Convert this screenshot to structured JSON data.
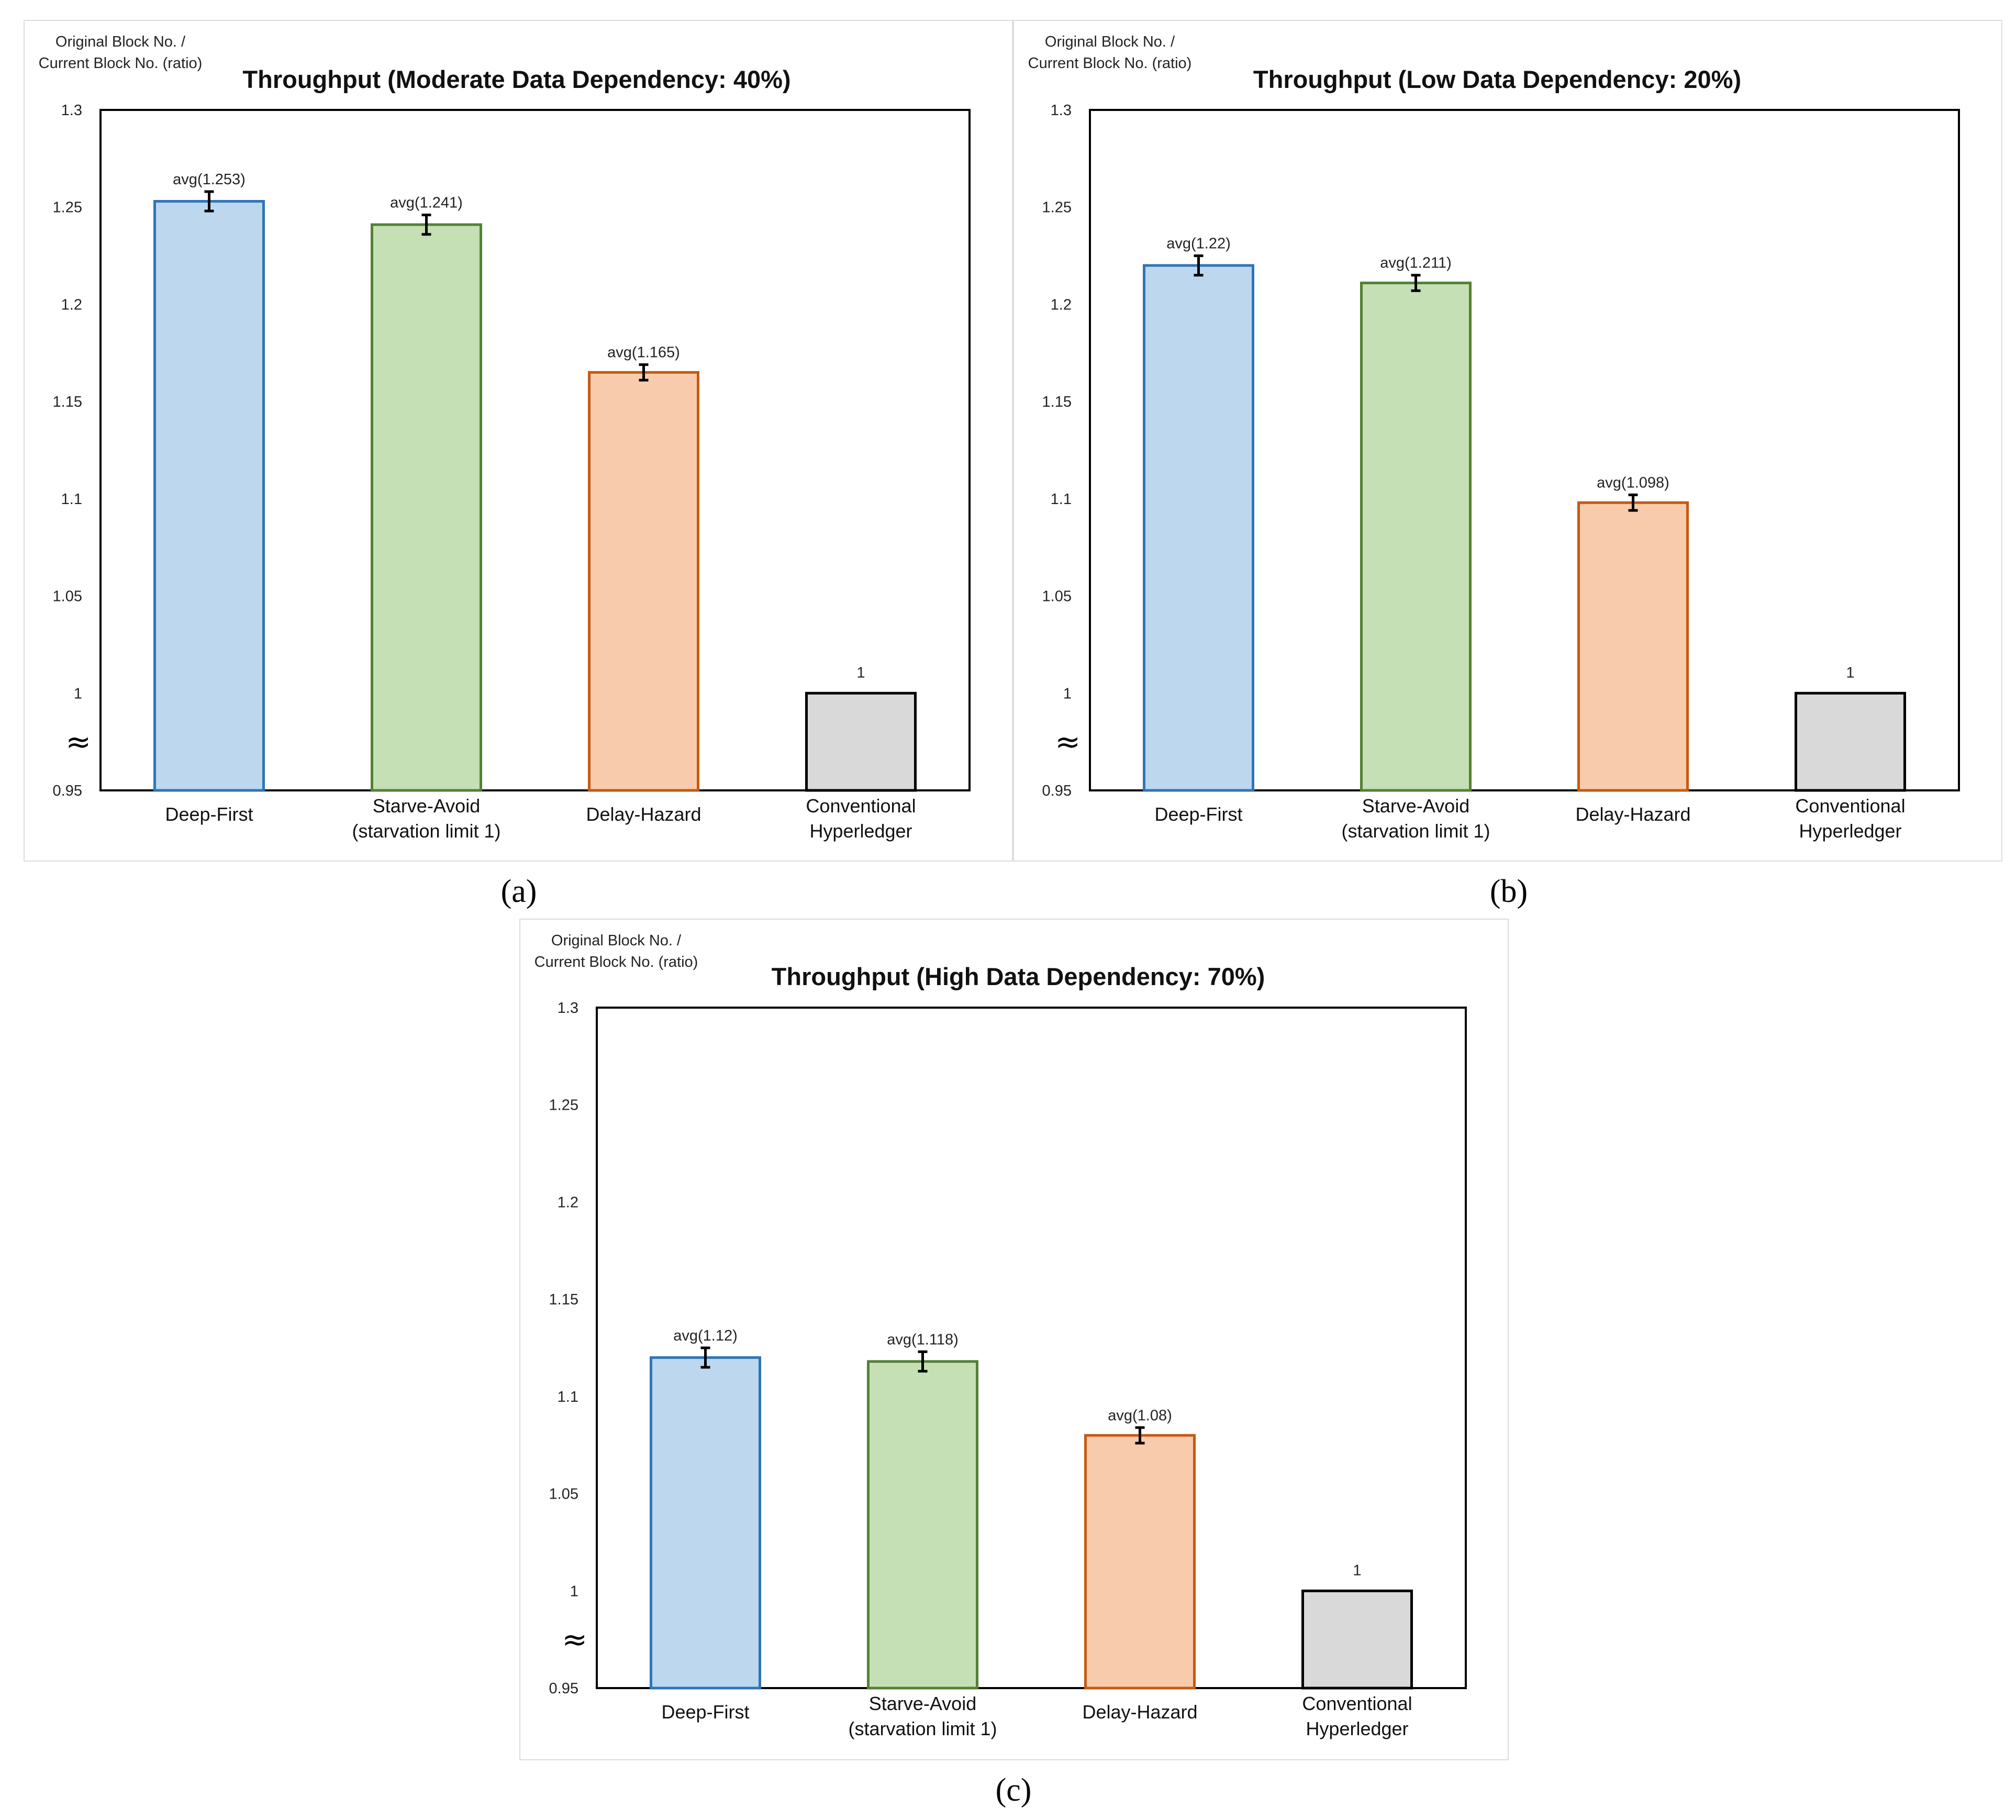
{
  "chart_data": [
    {
      "type": "bar",
      "panel_label": "(a)",
      "title": "Throughput (Moderate Data Dependency: 40%)",
      "ylabel": [
        "Original Block No. /",
        "Current Block No. (ratio)"
      ],
      "xlabel": "",
      "ylim": [
        0.95,
        1.3
      ],
      "yticks": [
        "1.3",
        "1.25",
        "1.2",
        "1.15",
        "1.1",
        "1.05",
        "1",
        "0.95"
      ],
      "ytick_values": [
        1.3,
        1.25,
        1.2,
        1.15,
        1.1,
        1.05,
        1.0,
        0.95
      ],
      "axis_break": "≈",
      "categories": [
        [
          "Deep-First"
        ],
        [
          "Starve-Avoid",
          "(starvation limit 1)"
        ],
        [
          "Delay-Hazard"
        ],
        [
          "Conventional",
          "Hyperledger"
        ]
      ],
      "values": [
        1.253,
        1.241,
        1.165,
        1.0
      ],
      "error": [
        0.005,
        0.005,
        0.004,
        0
      ],
      "data_labels": [
        "avg(1.253)",
        "avg(1.241)",
        "avg(1.165)",
        "1"
      ],
      "fill_colors": [
        "#bdd7ee",
        "#c5e0b4",
        "#f8cbad",
        "#d9d9d9"
      ],
      "edge_colors": [
        "#2e75b6",
        "#538135",
        "#c55a11",
        "#000000"
      ],
      "grid": false
    },
    {
      "type": "bar",
      "panel_label": "(b)",
      "title": "Throughput (Low Data Dependency: 20%)",
      "ylabel": [
        "Original Block No. /",
        "Current Block No. (ratio)"
      ],
      "xlabel": "",
      "ylim": [
        0.95,
        1.3
      ],
      "yticks": [
        "1.3",
        "1.25",
        "1.2",
        "1.15",
        "1.1",
        "1.05",
        "1",
        "0.95"
      ],
      "ytick_values": [
        1.3,
        1.25,
        1.2,
        1.15,
        1.1,
        1.05,
        1.0,
        0.95
      ],
      "axis_break": "≈",
      "categories": [
        [
          "Deep-First"
        ],
        [
          "Starve-Avoid",
          "(starvation limit 1)"
        ],
        [
          "Delay-Hazard"
        ],
        [
          "Conventional",
          "Hyperledger"
        ]
      ],
      "values": [
        1.22,
        1.211,
        1.098,
        1.0
      ],
      "error": [
        0.005,
        0.004,
        0.004,
        0
      ],
      "data_labels": [
        "avg(1.22)",
        "avg(1.211)",
        "avg(1.098)",
        "1"
      ],
      "fill_colors": [
        "#bdd7ee",
        "#c5e0b4",
        "#f8cbad",
        "#d9d9d9"
      ],
      "edge_colors": [
        "#2e75b6",
        "#538135",
        "#c55a11",
        "#000000"
      ],
      "grid": false
    },
    {
      "type": "bar",
      "panel_label": "(c)",
      "title": "Throughput (High Data Dependency: 70%)",
      "ylabel": [
        "Original Block No. /",
        "Current Block No. (ratio)"
      ],
      "xlabel": "",
      "ylim": [
        0.95,
        1.3
      ],
      "yticks": [
        "1.3",
        "1.25",
        "1.2",
        "1.15",
        "1.1",
        "1.05",
        "1",
        "0.95"
      ],
      "ytick_values": [
        1.3,
        1.25,
        1.2,
        1.15,
        1.1,
        1.05,
        1.0,
        0.95
      ],
      "axis_break": "≈",
      "categories": [
        [
          "Deep-First"
        ],
        [
          "Starve-Avoid",
          "(starvation limit 1)"
        ],
        [
          "Delay-Hazard"
        ],
        [
          "Conventional",
          "Hyperledger"
        ]
      ],
      "values": [
        1.12,
        1.118,
        1.08,
        1.0
      ],
      "error": [
        0.005,
        0.005,
        0.004,
        0
      ],
      "data_labels": [
        "avg(1.12)",
        "avg(1.118)",
        "avg(1.08)",
        "1"
      ],
      "fill_colors": [
        "#bdd7ee",
        "#c5e0b4",
        "#f8cbad",
        "#d9d9d9"
      ],
      "edge_colors": [
        "#2e75b6",
        "#538135",
        "#c55a11",
        "#000000"
      ],
      "grid": false
    }
  ]
}
